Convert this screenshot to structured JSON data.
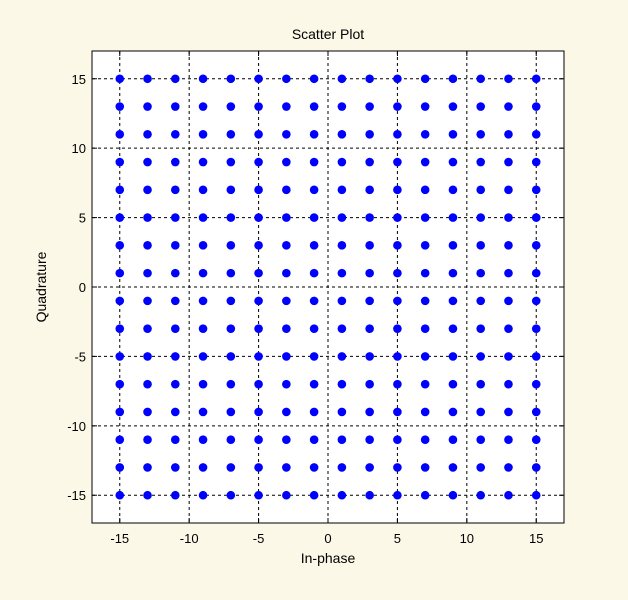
{
  "colors": {
    "background": "#fbf8e8",
    "plot_area": "#ffffff",
    "marker": "#0000ff",
    "grid": "#000000",
    "text": "#000000"
  },
  "chart_data": {
    "type": "scatter",
    "title": "Scatter Plot",
    "xlabel": "In-phase",
    "ylabel": "Quadrature",
    "xlim": [
      -17,
      17
    ],
    "ylim": [
      -17,
      17
    ],
    "xticks": [
      -15,
      -10,
      -5,
      0,
      5,
      10,
      15
    ],
    "yticks": [
      -15,
      -10,
      -5,
      0,
      5,
      10,
      15
    ],
    "xtick_labels": [
      "-15",
      "-10",
      "-5",
      "0",
      "5",
      "10",
      "15"
    ],
    "ytick_labels": [
      "-15",
      "-10",
      "-5",
      "0",
      "5",
      "10",
      "15"
    ],
    "grid": true,
    "grid_style": "dashed",
    "legend": "none",
    "marker_color": "#0000ff",
    "marker": "filled-circle",
    "points_x": [
      -15,
      -13,
      -11,
      -9,
      -7,
      -5,
      -3,
      -1,
      1,
      3,
      5,
      7,
      9,
      11,
      13,
      15
    ],
    "points_y": [
      -15,
      -13,
      -11,
      -9,
      -7,
      -5,
      -3,
      -1,
      1,
      3,
      5,
      7,
      9,
      11,
      13,
      15
    ]
  }
}
